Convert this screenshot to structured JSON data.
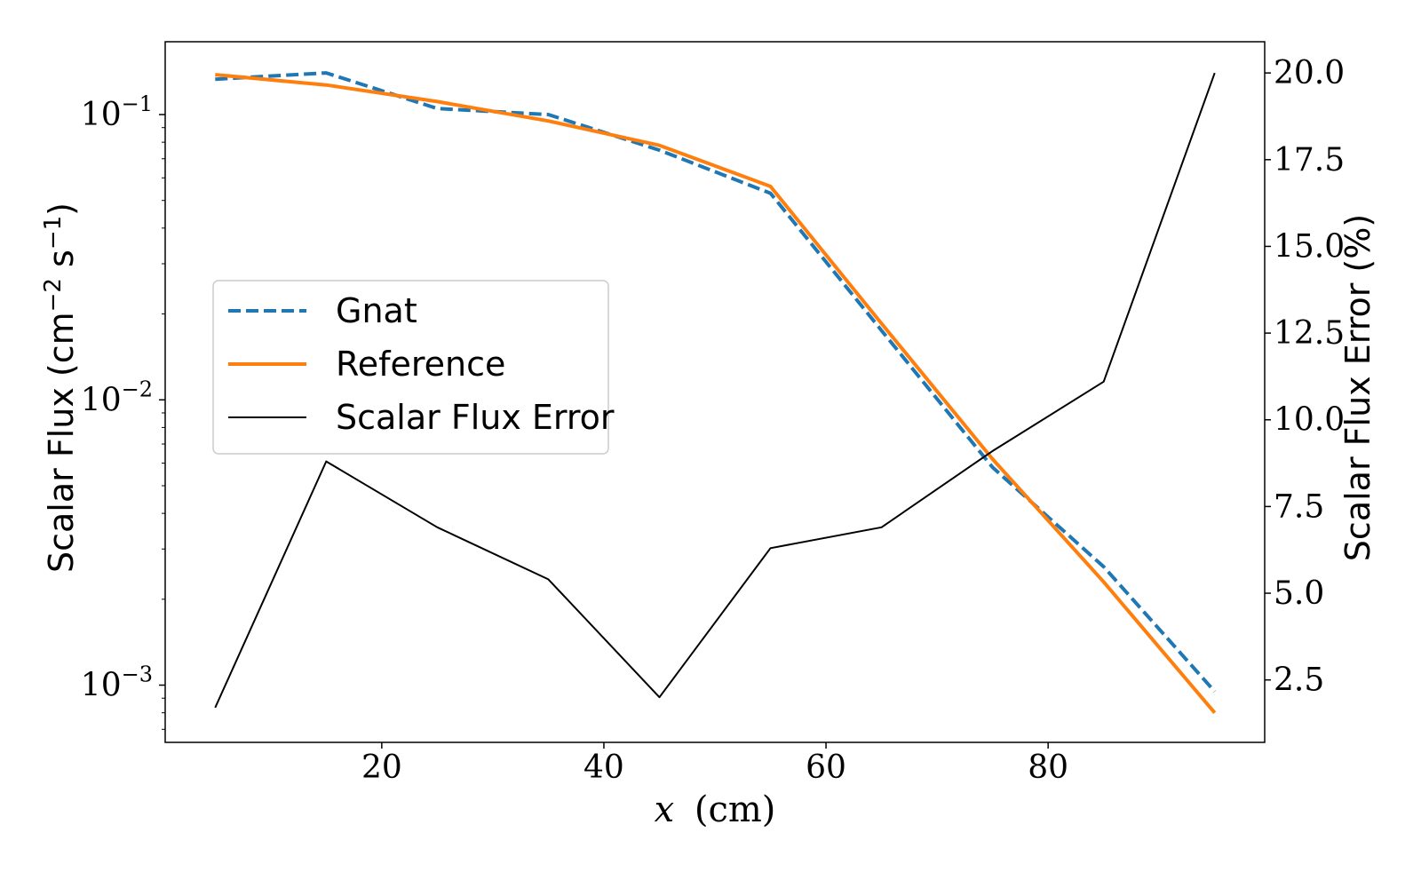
{
  "chart_data": {
    "type": "line",
    "x": [
      5,
      15,
      25,
      35,
      45,
      55,
      65,
      75,
      85,
      95
    ],
    "xlim": [
      0.5,
      99.5
    ],
    "xticks": [
      20,
      40,
      60,
      80
    ],
    "xlabel_var": "x",
    "xlabel_unit": "(cm)",
    "y_left": {
      "label": "Scalar Flux (cm",
      "label_exp1": "−2",
      "label_mid": " s",
      "label_exp2": "−1",
      "label_end": ")",
      "scale": "log",
      "ylim": [
        0.00063,
        0.18
      ],
      "ticks": [
        {
          "value": 0.1,
          "base": "10",
          "exp": "−1"
        },
        {
          "value": 0.01,
          "base": "10",
          "exp": "−2"
        },
        {
          "value": 0.001,
          "base": "10",
          "exp": "−3"
        }
      ]
    },
    "y_right": {
      "label": "Scalar Flux Error (%)",
      "scale": "linear",
      "ylim": [
        0.7,
        20.9
      ],
      "ticks": [
        "2.5",
        "5.0",
        "7.5",
        "10.0",
        "12.5",
        "15.0",
        "17.5",
        "20.0"
      ]
    },
    "series": [
      {
        "name": "Gnat",
        "axis": "left",
        "color": "#1f77b4",
        "dash": true,
        "values": [
          0.133,
          0.14,
          0.105,
          0.1,
          0.075,
          0.053,
          0.0175,
          0.0058,
          0.0026,
          0.00095
        ]
      },
      {
        "name": "Reference",
        "axis": "left",
        "color": "#ff7f0e",
        "dash": false,
        "values": [
          0.138,
          0.127,
          0.111,
          0.095,
          0.078,
          0.056,
          0.0185,
          0.0062,
          0.0023,
          0.0008
        ]
      },
      {
        "name": "Scalar Flux Error",
        "axis": "right",
        "color": "#000000",
        "dash": false,
        "values": [
          1.7,
          8.8,
          6.9,
          5.4,
          2.0,
          6.3,
          6.9,
          9.1,
          11.1,
          20.0
        ]
      }
    ],
    "legend": "center-left",
    "grid": false
  }
}
